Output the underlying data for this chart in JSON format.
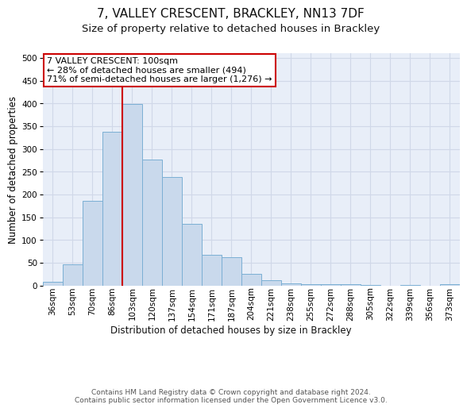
{
  "title_line1": "7, VALLEY CRESCENT, BRACKLEY, NN13 7DF",
  "title_line2": "Size of property relative to detached houses in Brackley",
  "xlabel": "Distribution of detached houses by size in Brackley",
  "ylabel": "Number of detached properties",
  "categories": [
    "36sqm",
    "53sqm",
    "70sqm",
    "86sqm",
    "103sqm",
    "120sqm",
    "137sqm",
    "154sqm",
    "171sqm",
    "187sqm",
    "204sqm",
    "221sqm",
    "238sqm",
    "255sqm",
    "272sqm",
    "288sqm",
    "305sqm",
    "322sqm",
    "339sqm",
    "356sqm",
    "373sqm"
  ],
  "values": [
    8,
    46,
    185,
    337,
    398,
    277,
    238,
    135,
    68,
    62,
    25,
    12,
    5,
    3,
    2,
    2,
    1,
    0,
    1,
    0,
    3
  ],
  "bar_color": "#c9d9ec",
  "bar_edge_color": "#7bafd4",
  "grid_color": "#d0d8e8",
  "background_color": "#e8eef8",
  "annotation_text": "7 VALLEY CRESCENT: 100sqm\n← 28% of detached houses are smaller (494)\n71% of semi-detached houses are larger (1,276) →",
  "annotation_box_color": "#ffffff",
  "annotation_box_edge": "#cc0000",
  "vline_x_index": 3.5,
  "vline_color": "#cc0000",
  "ylim": [
    0,
    510
  ],
  "yticks": [
    0,
    50,
    100,
    150,
    200,
    250,
    300,
    350,
    400,
    450,
    500
  ],
  "footer_text": "Contains HM Land Registry data © Crown copyright and database right 2024.\nContains public sector information licensed under the Open Government Licence v3.0.",
  "title_fontsize": 11,
  "subtitle_fontsize": 9.5,
  "tick_fontsize": 7.5,
  "label_fontsize": 8.5,
  "footer_fontsize": 6.5
}
